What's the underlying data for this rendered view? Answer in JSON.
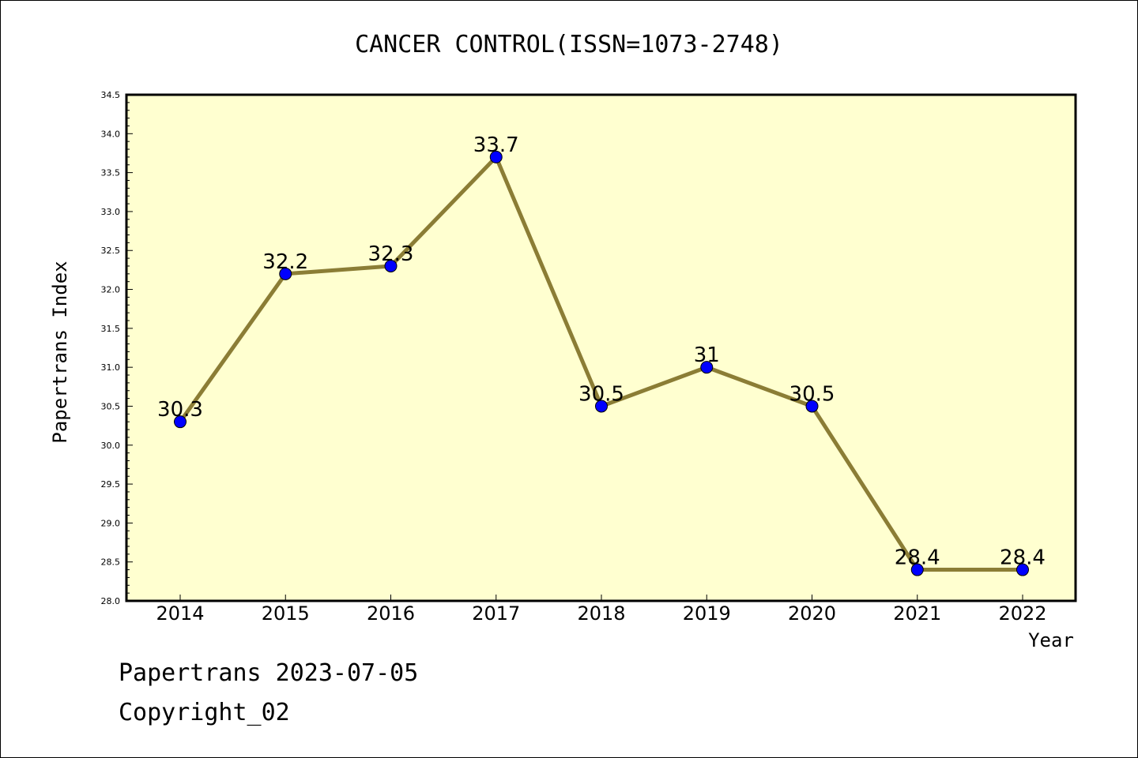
{
  "chart_data": {
    "type": "line",
    "title": "CANCER CONTROL(ISSN=1073-2748)",
    "xlabel": "Year",
    "ylabel": "Papertrans Index",
    "categories": [
      "2014",
      "2015",
      "2016",
      "2017",
      "2018",
      "2019",
      "2020",
      "2021",
      "2022"
    ],
    "values": [
      30.3,
      32.2,
      32.3,
      33.7,
      30.5,
      31,
      30.5,
      28.4,
      28.4
    ],
    "data_labels": [
      "30.3",
      "32.2",
      "32.3",
      "33.7",
      "30.5",
      "31",
      "30.5",
      "28.4",
      "28.4"
    ],
    "ylim": [
      28.0,
      34.5
    ],
    "yticks": [
      "28.0",
      "28.5",
      "29.0",
      "29.5",
      "30.0",
      "30.5",
      "31.0",
      "31.5",
      "32.0",
      "32.5",
      "33.0",
      "33.5",
      "34.0",
      "34.5"
    ],
    "grid": false,
    "colors": {
      "plot_background": "#ffffd0",
      "line": "#8b7d35",
      "marker": "#0000ff"
    }
  },
  "footer": {
    "line1": "Papertrans 2023-07-05",
    "line2": "Copyright_02"
  }
}
